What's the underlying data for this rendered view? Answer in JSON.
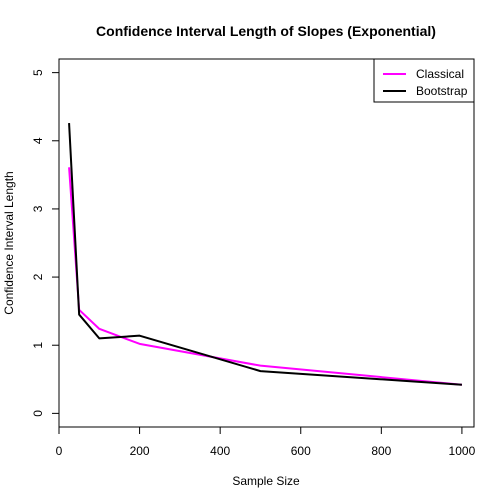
{
  "chart_data": {
    "type": "line",
    "title": "Confidence Interval Length of Slopes (Exponential)",
    "xlabel": "Sample Size",
    "ylabel": "Confidence Interval Length",
    "xlim": [
      0,
      1030
    ],
    "ylim": [
      -0.2,
      5.2
    ],
    "xticks": [
      0,
      200,
      400,
      600,
      800,
      1000
    ],
    "yticks": [
      0,
      1,
      2,
      3,
      4,
      5
    ],
    "x": [
      25,
      50,
      100,
      200,
      500,
      1000
    ],
    "series": [
      {
        "name": "Classical",
        "color": "#ff00ff",
        "values": [
          3.61,
          1.52,
          1.24,
          1.02,
          0.7,
          0.42
        ]
      },
      {
        "name": "Bootstrap",
        "color": "#000000",
        "values": [
          4.26,
          1.45,
          1.1,
          1.14,
          0.62,
          0.42
        ]
      }
    ],
    "legend_position": "top-right",
    "grid": false
  }
}
